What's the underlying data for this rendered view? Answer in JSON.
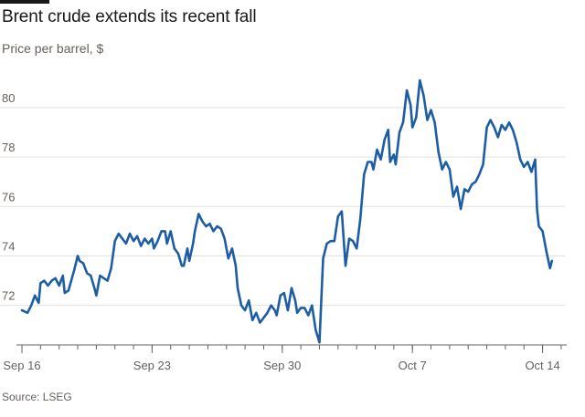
{
  "header": {
    "title": "Brent crude extends its recent fall",
    "subtitle": "Price per barrel, $"
  },
  "footer": {
    "source": "Source: LSEG"
  },
  "colors": {
    "line": "#1d5da4",
    "grid": "#e6e0d8",
    "axis": "#66605c",
    "text": "#66605c"
  },
  "chart_data": {
    "type": "line",
    "title": "Brent crude extends its recent fall",
    "subtitle": "Price per barrel, $",
    "xlabel": "",
    "ylabel": "Price per barrel, $",
    "x_unit": "days since Sep 16 (00:00)",
    "xlim": [
      0,
      29.2
    ],
    "ylim": [
      70.4,
      81.4
    ],
    "grid": true,
    "y_ticks": [
      72,
      74,
      76,
      78,
      80
    ],
    "y_tick_labels": [
      "72",
      "74",
      "76",
      "78",
      "80"
    ],
    "x_ticks": [
      0,
      7,
      14,
      21,
      28
    ],
    "x_tick_labels": [
      "Sep 16",
      "Sep 23",
      "Sep 30",
      "Oct 7",
      "Oct 14"
    ],
    "series": [
      {
        "name": "Brent crude",
        "points": [
          [
            0.0,
            71.8
          ],
          [
            0.3,
            71.7
          ],
          [
            0.5,
            72.0
          ],
          [
            0.7,
            72.4
          ],
          [
            0.9,
            72.1
          ],
          [
            1.0,
            72.9
          ],
          [
            1.2,
            73.0
          ],
          [
            1.4,
            72.8
          ],
          [
            1.6,
            73.0
          ],
          [
            1.8,
            73.1
          ],
          [
            2.0,
            72.8
          ],
          [
            2.2,
            73.2
          ],
          [
            2.3,
            72.5
          ],
          [
            2.5,
            72.6
          ],
          [
            2.8,
            73.4
          ],
          [
            3.0,
            74.0
          ],
          [
            3.1,
            73.8
          ],
          [
            3.3,
            73.7
          ],
          [
            3.5,
            73.3
          ],
          [
            3.7,
            73.2
          ],
          [
            3.9,
            72.7
          ],
          [
            4.0,
            72.4
          ],
          [
            4.2,
            73.2
          ],
          [
            4.4,
            73.1
          ],
          [
            4.6,
            73.0
          ],
          [
            4.8,
            73.5
          ],
          [
            5.0,
            74.6
          ],
          [
            5.2,
            74.9
          ],
          [
            5.4,
            74.7
          ],
          [
            5.6,
            74.5
          ],
          [
            5.8,
            74.9
          ],
          [
            6.0,
            74.6
          ],
          [
            6.2,
            74.8
          ],
          [
            6.4,
            74.4
          ],
          [
            6.6,
            74.7
          ],
          [
            6.8,
            74.5
          ],
          [
            7.0,
            74.7
          ],
          [
            7.1,
            74.3
          ],
          [
            7.3,
            74.6
          ],
          [
            7.5,
            75.0
          ],
          [
            7.7,
            75.0
          ],
          [
            7.8,
            74.5
          ],
          [
            8.0,
            75.0
          ],
          [
            8.2,
            74.3
          ],
          [
            8.4,
            74.1
          ],
          [
            8.6,
            73.6
          ],
          [
            8.7,
            73.6
          ],
          [
            8.9,
            74.3
          ],
          [
            9.0,
            73.8
          ],
          [
            9.2,
            74.5
          ],
          [
            9.3,
            75.0
          ],
          [
            9.5,
            75.7
          ],
          [
            9.7,
            75.4
          ],
          [
            9.9,
            75.2
          ],
          [
            10.1,
            75.3
          ],
          [
            10.3,
            75.0
          ],
          [
            10.5,
            75.2
          ],
          [
            10.7,
            75.1
          ],
          [
            10.9,
            74.7
          ],
          [
            11.1,
            73.9
          ],
          [
            11.3,
            74.3
          ],
          [
            11.5,
            73.6
          ],
          [
            11.6,
            72.7
          ],
          [
            11.8,
            72.0
          ],
          [
            12.0,
            71.8
          ],
          [
            12.2,
            72.2
          ],
          [
            12.4,
            71.4
          ],
          [
            12.6,
            71.7
          ],
          [
            12.8,
            71.3
          ],
          [
            13.0,
            71.5
          ],
          [
            13.2,
            71.7
          ],
          [
            13.4,
            72.0
          ],
          [
            13.6,
            71.8
          ],
          [
            13.7,
            71.6
          ],
          [
            13.9,
            72.4
          ],
          [
            14.1,
            72.5
          ],
          [
            14.3,
            71.8
          ],
          [
            14.5,
            72.7
          ],
          [
            14.7,
            72.2
          ],
          [
            14.8,
            71.7
          ],
          [
            15.0,
            71.9
          ],
          [
            15.2,
            71.9
          ],
          [
            15.4,
            71.6
          ],
          [
            15.6,
            72.0
          ],
          [
            15.8,
            71.0
          ],
          [
            16.0,
            70.5
          ],
          [
            16.2,
            73.9
          ],
          [
            16.4,
            74.5
          ],
          [
            16.6,
            74.6
          ],
          [
            16.8,
            74.6
          ],
          [
            17.0,
            75.6
          ],
          [
            17.2,
            75.8
          ],
          [
            17.4,
            73.6
          ],
          [
            17.6,
            74.7
          ],
          [
            17.8,
            74.6
          ],
          [
            18.0,
            74.3
          ],
          [
            18.2,
            75.5
          ],
          [
            18.4,
            77.3
          ],
          [
            18.6,
            77.8
          ],
          [
            18.8,
            77.8
          ],
          [
            18.9,
            77.5
          ],
          [
            19.1,
            78.3
          ],
          [
            19.3,
            77.9
          ],
          [
            19.5,
            78.7
          ],
          [
            19.7,
            79.1
          ],
          [
            19.8,
            77.8
          ],
          [
            20.0,
            78.1
          ],
          [
            20.1,
            77.7
          ],
          [
            20.3,
            79.0
          ],
          [
            20.5,
            79.4
          ],
          [
            20.7,
            80.7
          ],
          [
            20.9,
            80.1
          ],
          [
            21.0,
            79.2
          ],
          [
            21.2,
            79.6
          ],
          [
            21.4,
            81.1
          ],
          [
            21.6,
            80.5
          ],
          [
            21.8,
            79.5
          ],
          [
            22.0,
            79.9
          ],
          [
            22.2,
            79.4
          ],
          [
            22.4,
            78.2
          ],
          [
            22.6,
            77.5
          ],
          [
            22.8,
            77.8
          ],
          [
            23.0,
            77.5
          ],
          [
            23.2,
            76.4
          ],
          [
            23.4,
            76.8
          ],
          [
            23.6,
            75.9
          ],
          [
            23.8,
            76.7
          ],
          [
            24.0,
            76.6
          ],
          [
            24.2,
            76.9
          ],
          [
            24.4,
            77.0
          ],
          [
            24.6,
            77.3
          ],
          [
            24.8,
            77.7
          ],
          [
            25.0,
            79.2
          ],
          [
            25.2,
            79.5
          ],
          [
            25.4,
            79.2
          ],
          [
            25.6,
            78.8
          ],
          [
            25.8,
            79.3
          ],
          [
            26.0,
            79.1
          ],
          [
            26.2,
            79.4
          ],
          [
            26.4,
            79.1
          ],
          [
            26.6,
            78.6
          ],
          [
            26.8,
            77.9
          ],
          [
            27.0,
            77.6
          ],
          [
            27.2,
            77.8
          ],
          [
            27.4,
            77.4
          ],
          [
            27.6,
            77.9
          ],
          [
            27.7,
            75.9
          ],
          [
            27.8,
            75.2
          ],
          [
            28.0,
            75.0
          ],
          [
            28.2,
            74.2
          ],
          [
            28.4,
            73.5
          ],
          [
            28.5,
            73.8
          ]
        ]
      }
    ]
  }
}
